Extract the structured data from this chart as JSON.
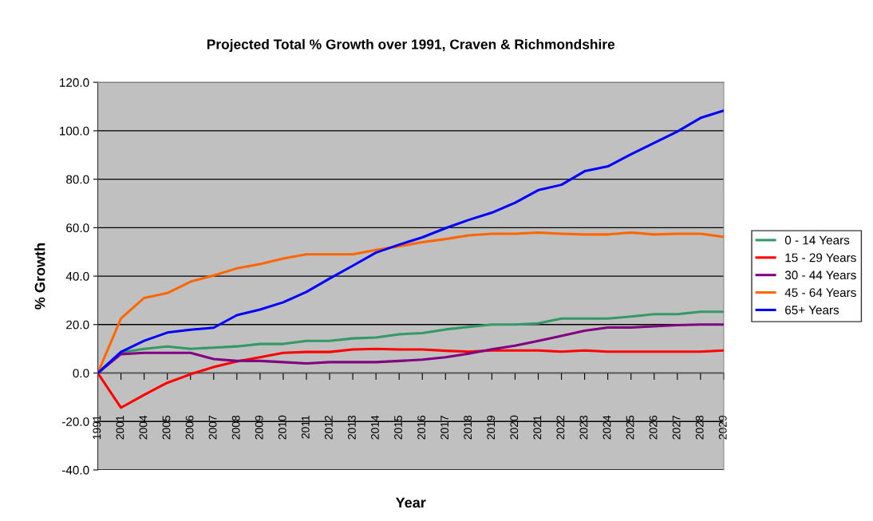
{
  "chart_data": {
    "type": "line",
    "title": "Projected Total % Growth over 1991, Craven & Richmondshire",
    "xlabel": "Year",
    "ylabel": "% Growth",
    "categories": [
      "1991",
      "2001",
      "2004",
      "2005",
      "2006",
      "2007",
      "2008",
      "2009",
      "2010",
      "2011",
      "2012",
      "2013",
      "2014",
      "2015",
      "2016",
      "2017",
      "2018",
      "2019",
      "2020",
      "2021",
      "2022",
      "2023",
      "2024",
      "2025",
      "2026",
      "2027",
      "2028",
      "2029"
    ],
    "series": [
      {
        "name": "0 - 14 Years",
        "color": "#339966",
        "values": [
          0,
          8.5,
          10,
          11,
          10,
          10.5,
          11,
          12,
          12,
          13.3,
          13.3,
          14.3,
          14.7,
          16,
          16.5,
          18,
          19,
          20,
          20,
          20.5,
          22.5,
          22.5,
          22.5,
          23.3,
          24.3,
          24.3,
          25.3,
          25.3
        ]
      },
      {
        "name": "15 - 29 Years",
        "color": "#ff0000",
        "values": [
          0,
          -14.3,
          -9,
          -4,
          -0.5,
          2.5,
          4.8,
          6.5,
          8.3,
          8.7,
          8.7,
          9.7,
          10,
          9.7,
          9.7,
          9.2,
          8.8,
          9.3,
          9.3,
          9.3,
          8.8,
          9.3,
          8.8,
          8.8,
          8.8,
          8.8,
          8.8,
          9.3
        ]
      },
      {
        "name": "30 - 44 Years",
        "color": "#800080",
        "values": [
          0,
          7.8,
          8.3,
          8.3,
          8.3,
          5.8,
          5,
          5,
          4.5,
          4,
          4.5,
          4.5,
          4.5,
          5,
          5.5,
          6.5,
          8,
          9.8,
          11.3,
          13.3,
          15.3,
          17.5,
          18.8,
          18.8,
          19.3,
          19.8,
          20,
          20
        ]
      },
      {
        "name": "45 - 64 Years",
        "color": "#ff6600",
        "values": [
          0,
          22.5,
          31,
          33,
          37.7,
          40.3,
          43.2,
          45,
          47.3,
          49,
          49,
          49,
          50.8,
          52.3,
          54,
          55.3,
          56.8,
          57.5,
          57.5,
          58,
          57.5,
          57.2,
          57.2,
          58,
          57.2,
          57.5,
          57.5,
          56.2
        ]
      },
      {
        "name": "65+ Years",
        "color": "#0000ff",
        "values": [
          0,
          8.7,
          13.3,
          16.7,
          17.9,
          18.7,
          23.9,
          26.2,
          29.2,
          33.5,
          39,
          44.3,
          49.7,
          53,
          56,
          59.8,
          63.2,
          66.2,
          70.3,
          75.5,
          77.7,
          83.3,
          85.3,
          90.3,
          95,
          99.7,
          105.3,
          108.3
        ]
      }
    ],
    "ylim": [
      -40,
      120
    ],
    "yticks": [
      {
        "value": -40,
        "label": "-40.0"
      },
      {
        "value": -20,
        "label": "-20.0"
      },
      {
        "value": 0,
        "label": "0.0"
      },
      {
        "value": 20,
        "label": "20.0"
      },
      {
        "value": 40,
        "label": "40.0"
      },
      {
        "value": 60,
        "label": "60.0"
      },
      {
        "value": 80,
        "label": "80.0"
      },
      {
        "value": 100,
        "label": "100.0"
      },
      {
        "value": 120,
        "label": "120.0"
      }
    ],
    "grid": "y",
    "legend": "right",
    "marker": "none",
    "line_style": "solid"
  }
}
